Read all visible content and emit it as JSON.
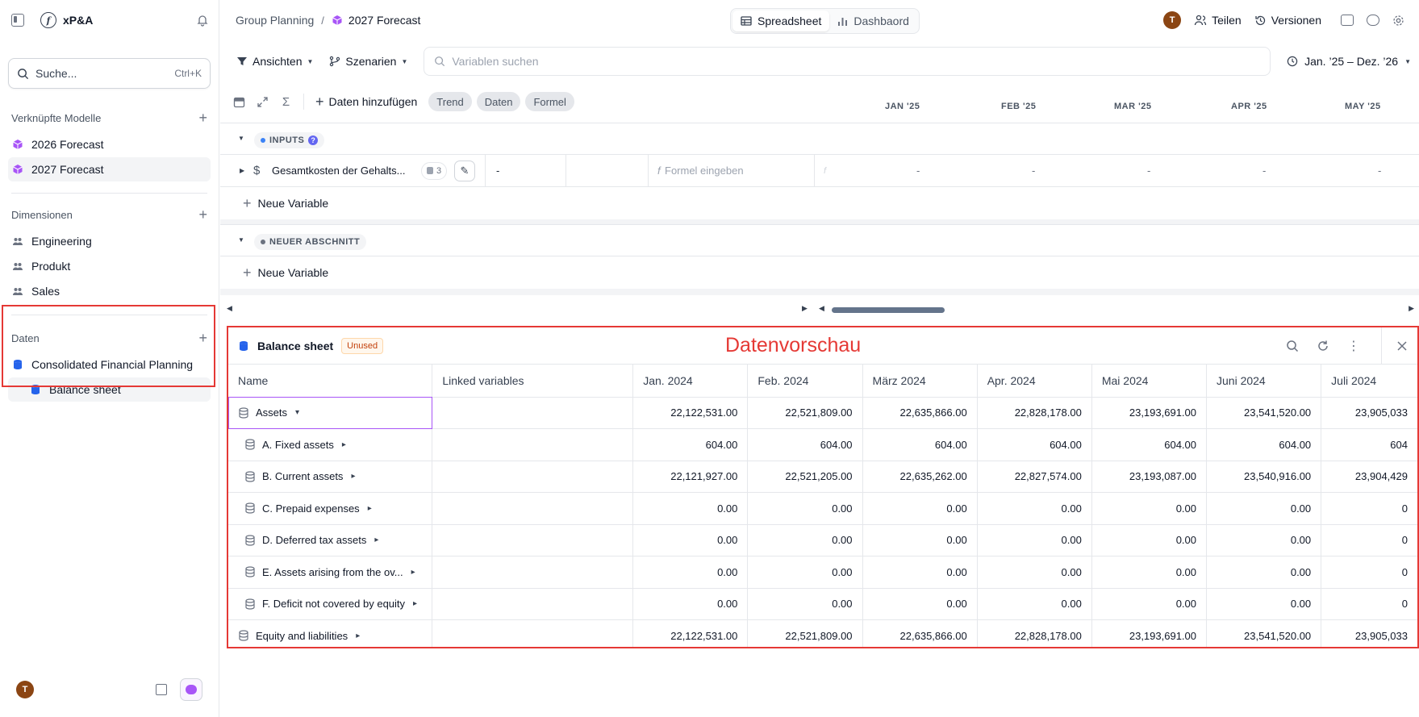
{
  "app": {
    "name": "xP&A"
  },
  "sidebar": {
    "search_placeholder": "Suche...",
    "search_shortcut": "Ctrl+K",
    "linked_models_title": "Verknüpfte Modelle",
    "linked_models": [
      {
        "label": "2026 Forecast"
      },
      {
        "label": "2027 Forecast"
      }
    ],
    "dimensions_title": "Dimensionen",
    "dimensions": [
      {
        "label": "Engineering"
      },
      {
        "label": "Produkt"
      },
      {
        "label": "Sales"
      }
    ],
    "data_title": "Daten",
    "data_items": [
      {
        "label": "Consolidated Financial Planning"
      },
      {
        "label": "Balance sheet"
      }
    ],
    "avatar_initial": "T"
  },
  "topbar": {
    "breadcrumb_parent": "Group Planning",
    "breadcrumb_sep": "/",
    "breadcrumb_current": "2027 Forecast",
    "tab_spreadsheet": "Spreadsheet",
    "tab_dashboard": "Dashbaord",
    "avatar_initial": "T",
    "share": "Teilen",
    "versions": "Versionen"
  },
  "toolbar": {
    "views": "Ansichten",
    "scenarios": "Szenarien",
    "var_search_placeholder": "Variablen suchen",
    "period": "Jan. ’25 – Dez. ’26",
    "add_data": "Daten hinzufügen",
    "chips": [
      "Trend",
      "Daten",
      "Formel"
    ],
    "months": [
      "JAN '25",
      "FEB '25",
      "MAR '25",
      "APR '25",
      "MAY '25"
    ]
  },
  "grid": {
    "section1": "INPUTS",
    "variable_name": "Gesamtkosten der Gehalts...",
    "variable_count": "3",
    "variable_value": "-",
    "formula_placeholder": "Formel eingeben",
    "month_values": [
      "-",
      "-",
      "-",
      "-",
      "-"
    ],
    "new_variable": "Neue Variable",
    "section2": "NEUER ABSCHNITT"
  },
  "preview": {
    "label": "Datenvorschau",
    "title": "Balance sheet",
    "badge": "Unused",
    "col_name": "Name",
    "col_linked": "Linked variables",
    "months": [
      "Jan. 2024",
      "Feb. 2024",
      "März 2024",
      "Apr. 2024",
      "Mai 2024",
      "Juni 2024",
      "Juli 2024"
    ],
    "rows": [
      {
        "name": "Assets",
        "values": [
          "22,122,531.00",
          "22,521,809.00",
          "22,635,866.00",
          "22,828,178.00",
          "23,193,691.00",
          "23,541,520.00",
          "23,905,033"
        ]
      },
      {
        "name": "A. Fixed assets",
        "values": [
          "604.00",
          "604.00",
          "604.00",
          "604.00",
          "604.00",
          "604.00",
          "604"
        ]
      },
      {
        "name": "B. Current assets",
        "values": [
          "22,121,927.00",
          "22,521,205.00",
          "22,635,262.00",
          "22,827,574.00",
          "23,193,087.00",
          "23,540,916.00",
          "23,904,429"
        ]
      },
      {
        "name": "C. Prepaid expenses",
        "values": [
          "0.00",
          "0.00",
          "0.00",
          "0.00",
          "0.00",
          "0.00",
          "0"
        ]
      },
      {
        "name": "D. Deferred tax assets",
        "values": [
          "0.00",
          "0.00",
          "0.00",
          "0.00",
          "0.00",
          "0.00",
          "0"
        ]
      },
      {
        "name": "E. Assets arising from the ov...",
        "values": [
          "0.00",
          "0.00",
          "0.00",
          "0.00",
          "0.00",
          "0.00",
          "0"
        ]
      },
      {
        "name": "F. Deficit not covered by equity",
        "values": [
          "0.00",
          "0.00",
          "0.00",
          "0.00",
          "0.00",
          "0.00",
          "0"
        ]
      },
      {
        "name": "Equity and liabilities",
        "values": [
          "22,122,531.00",
          "22,521,809.00",
          "22,635,866.00",
          "22,828,178.00",
          "23,193,691.00",
          "23,541,520.00",
          "23,905,033"
        ]
      }
    ]
  }
}
